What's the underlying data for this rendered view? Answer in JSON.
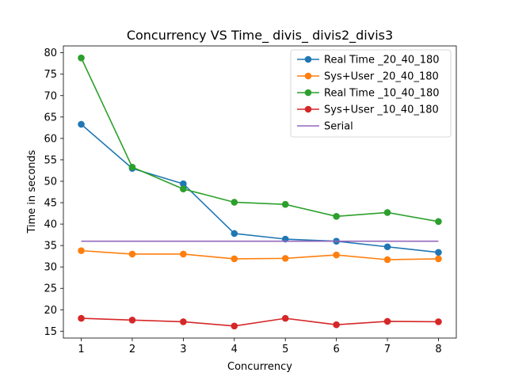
{
  "chart_data": {
    "type": "line",
    "title": "Concurrency VS Time_ divis_ divis2_divis3",
    "xlabel": "Concurrency",
    "ylabel": "Time in seconds",
    "x": [
      1,
      2,
      3,
      4,
      5,
      6,
      7,
      8
    ],
    "xlim": [
      0.65,
      8.35
    ],
    "ylim": [
      13.4,
      81.6
    ],
    "xticks": [
      "1",
      "2",
      "3",
      "4",
      "5",
      "6",
      "7",
      "8"
    ],
    "yticks": [
      "15",
      "20",
      "25",
      "30",
      "35",
      "40",
      "45",
      "50",
      "55",
      "60",
      "65",
      "70",
      "75",
      "80"
    ],
    "grid": false,
    "legend_position": "top-right",
    "series": [
      {
        "name": "Real Time _20_40_180",
        "color": "#1f77b4",
        "marker": "circle",
        "values": [
          63.3,
          53.0,
          49.4,
          37.8,
          36.5,
          36.0,
          34.7,
          33.4
        ]
      },
      {
        "name": "Sys+User _20_40_180",
        "color": "#ff7f0e",
        "marker": "circle",
        "values": [
          33.8,
          33.0,
          33.0,
          31.9,
          32.0,
          32.8,
          31.7,
          31.9
        ]
      },
      {
        "name": "Real Time _10_40_180",
        "color": "#2ca02c",
        "marker": "circle",
        "values": [
          78.8,
          53.3,
          48.2,
          45.1,
          44.6,
          41.8,
          42.7,
          40.6
        ]
      },
      {
        "name": "Sys+User _10_40_180",
        "color": "#d62728",
        "marker": "circle",
        "values": [
          18.0,
          17.6,
          17.2,
          16.2,
          18.0,
          16.5,
          17.3,
          17.2
        ]
      },
      {
        "name": "Serial",
        "color": "#9467bd",
        "marker": "none",
        "values": [
          36.0,
          36.0,
          36.0,
          36.0,
          36.0,
          36.0,
          36.0,
          36.0
        ]
      }
    ]
  }
}
